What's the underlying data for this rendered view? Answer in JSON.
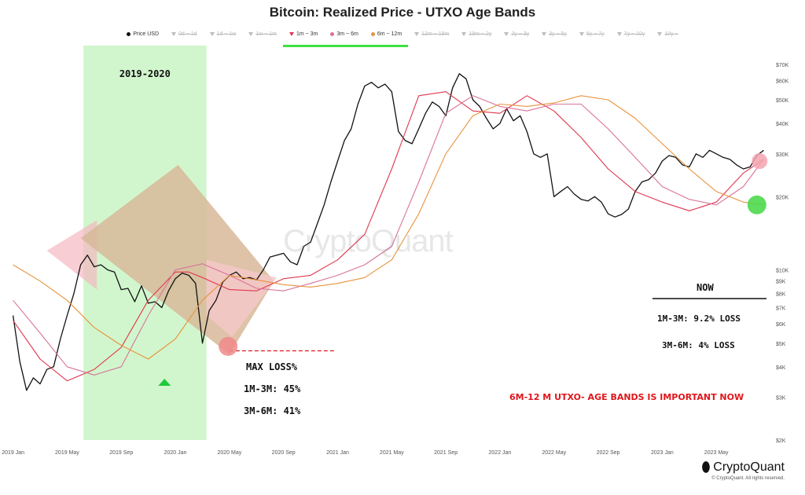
{
  "chart_data": {
    "type": "line",
    "title": "Bitcoin: Realized Price - UTXO Age Bands",
    "legend": [
      {
        "label": "Price USD",
        "color": "#111111",
        "active": true,
        "marker": "dot"
      },
      {
        "label": "0d ~ 1d",
        "color": "#bbbbbb",
        "active": false,
        "marker": "tri"
      },
      {
        "label": "1d ~ 1w",
        "color": "#bbbbbb",
        "active": false,
        "marker": "tri"
      },
      {
        "label": "1w ~ 1m",
        "color": "#bbbbbb",
        "active": false,
        "marker": "tri"
      },
      {
        "label": "1m ~ 3m",
        "color": "#e0364e",
        "active": true,
        "marker": "tri"
      },
      {
        "label": "3m ~ 6m",
        "color": "#d9729a",
        "active": true,
        "marker": "dot"
      },
      {
        "label": "6m ~ 12m",
        "color": "#e8933c",
        "active": true,
        "marker": "dot"
      },
      {
        "label": "12m ~ 18m",
        "color": "#bbbbbb",
        "active": false,
        "marker": "tri"
      },
      {
        "label": "18m ~ 2y",
        "color": "#bbbbbb",
        "active": false,
        "marker": "tri"
      },
      {
        "label": "2y ~ 3y",
        "color": "#bbbbbb",
        "active": false,
        "marker": "tri"
      },
      {
        "label": "3y ~ 5y",
        "color": "#bbbbbb",
        "active": false,
        "marker": "tri"
      },
      {
        "label": "5y ~ 7y",
        "color": "#bbbbbb",
        "active": false,
        "marker": "tri"
      },
      {
        "label": "7y ~ 10y",
        "color": "#bbbbbb",
        "active": false,
        "marker": "tri"
      },
      {
        "label": "10y ~",
        "color": "#bbbbbb",
        "active": false,
        "marker": "tri"
      }
    ],
    "x_ticks": [
      "2019 Jan",
      "2019 May",
      "2019 Sep",
      "2020 Jan",
      "2020 May",
      "2020 Sep",
      "2021 Jan",
      "2021 May",
      "2021 Sep",
      "2022 Jan",
      "2022 May",
      "2022 Sep",
      "2023 Jan",
      "2023 May"
    ],
    "y_ticks": [
      {
        "label": "$70K",
        "v": 70000
      },
      {
        "label": "$60K",
        "v": 60000
      },
      {
        "label": "$50K",
        "v": 50000
      },
      {
        "label": "$40K",
        "v": 40000
      },
      {
        "label": "$30K",
        "v": 30000
      },
      {
        "label": "$20K",
        "v": 20000
      },
      {
        "label": "$10K",
        "v": 10000
      },
      {
        "label": "$9K",
        "v": 9000
      },
      {
        "label": "$8K",
        "v": 8000
      },
      {
        "label": "$7K",
        "v": 7000
      },
      {
        "label": "$6K",
        "v": 6000
      },
      {
        "label": "$5K",
        "v": 5000
      },
      {
        "label": "$4K",
        "v": 4000
      },
      {
        "label": "$3K",
        "v": 3000
      },
      {
        "label": "$2K",
        "v": 2000
      }
    ],
    "y_scale": "log",
    "ylim": [
      2000,
      70000
    ],
    "series": [
      {
        "name": "Price USD",
        "color": "#111111",
        "t": [
          0,
          0.5,
          1,
          1.5,
          2,
          2.5,
          3,
          3.5,
          4,
          4.5,
          5,
          5.5,
          6,
          6.5,
          7,
          7.5,
          8,
          8.5,
          9,
          9.5,
          10,
          10.5,
          11,
          11.5,
          12,
          12.5,
          13,
          13.5,
          14,
          14.5,
          15,
          15.5,
          16,
          16.5,
          17,
          17.5,
          18,
          18.5,
          19,
          19.5,
          20,
          20.5,
          21,
          21.5,
          22,
          22.5,
          23,
          23.5,
          24,
          24.5,
          25,
          25.5,
          26,
          26.5,
          27,
          27.5,
          28,
          28.5,
          29,
          29.5,
          30,
          30.5,
          31,
          31.5,
          32,
          32.5,
          33,
          33.5,
          34,
          34.5,
          35,
          35.5,
          36,
          36.5,
          37,
          37.5,
          38,
          38.5,
          39,
          39.5,
          40,
          40.5,
          41,
          41.5,
          42,
          42.5,
          43,
          43.5,
          44,
          44.5,
          45,
          45.5,
          46,
          46.5,
          47,
          47.5,
          48,
          48.5,
          49,
          49.5,
          50,
          50.5,
          51,
          51.5,
          52,
          52.5,
          53,
          53.5,
          54,
          54.5,
          55,
          55.5
        ],
        "v": [
          6500,
          4200,
          3200,
          3600,
          3400,
          3900,
          4000,
          5200,
          6500,
          8000,
          10500,
          11500,
          10300,
          10500,
          10000,
          9800,
          8300,
          8400,
          7400,
          8600,
          7300,
          7400,
          7000,
          8200,
          9200,
          9700,
          9500,
          8800,
          5000,
          6800,
          7500,
          8900,
          9500,
          9800,
          9200,
          9300,
          9100,
          10000,
          11300,
          11500,
          11700,
          10800,
          10500,
          12500,
          13000,
          15500,
          18500,
          23000,
          28000,
          34000,
          38000,
          48000,
          57000,
          59000,
          56000,
          58000,
          54000,
          37000,
          34000,
          33000,
          38000,
          44000,
          49000,
          47000,
          43000,
          56000,
          64000,
          61000,
          50000,
          47000,
          42000,
          38000,
          40000,
          46000,
          41000,
          43000,
          37000,
          30000,
          29000,
          30000,
          20000,
          21000,
          22000,
          20500,
          19500,
          19200,
          20000,
          19000,
          17000,
          16500,
          16900,
          17800,
          21000,
          23000,
          23500,
          25000,
          28000,
          29500,
          29000,
          27000,
          26500,
          30000,
          29000,
          31000,
          30000,
          29000,
          28500,
          27000,
          26000,
          26500,
          29500,
          31000
        ]
      },
      {
        "name": "1m ~ 3m",
        "color": "#e0364e",
        "t": [
          0,
          2,
          4,
          6,
          8,
          10,
          12,
          13,
          14,
          16,
          18,
          20,
          22,
          24,
          26,
          28,
          30,
          32,
          34,
          36,
          38,
          40,
          42,
          44,
          46,
          48,
          50,
          52,
          54,
          55.5
        ],
        "v": [
          6200,
          4300,
          3500,
          3900,
          4800,
          7500,
          9800,
          9800,
          9300,
          8300,
          8200,
          9200,
          9500,
          11000,
          14000,
          26000,
          52000,
          54000,
          45000,
          44000,
          52000,
          45000,
          35000,
          26000,
          21000,
          19000,
          17500,
          19000,
          25000,
          28500
        ]
      },
      {
        "name": "3m ~ 6m",
        "color": "#d9729a",
        "t": [
          0,
          2,
          4,
          6,
          8,
          10,
          12,
          14,
          16,
          18,
          20,
          22,
          24,
          26,
          28,
          30,
          32,
          34,
          36,
          38,
          40,
          42,
          44,
          46,
          48,
          50,
          52,
          54,
          55.5
        ],
        "v": [
          7500,
          5500,
          4000,
          3700,
          4000,
          6500,
          10000,
          10600,
          9500,
          8400,
          8200,
          8800,
          9500,
          10500,
          12500,
          23000,
          44000,
          52000,
          47000,
          45000,
          48000,
          48000,
          38000,
          29000,
          22000,
          19500,
          18500,
          22000,
          28500
        ]
      },
      {
        "name": "6m ~ 12m",
        "color": "#e8933c",
        "t": [
          0,
          2,
          4,
          6,
          8,
          10,
          12,
          14,
          16,
          18,
          20,
          22,
          24,
          26,
          28,
          30,
          32,
          34,
          36,
          38,
          40,
          42,
          44,
          46,
          48,
          50,
          52,
          54,
          55.5
        ],
        "v": [
          10500,
          9000,
          7500,
          5800,
          4900,
          4300,
          5200,
          7500,
          9500,
          9100,
          8700,
          8500,
          8800,
          9300,
          11000,
          17000,
          30000,
          43000,
          48000,
          47000,
          48500,
          52000,
          50000,
          42000,
          33000,
          26000,
          21000,
          19000,
          18500
        ]
      }
    ],
    "highlight_label": "2019-2020",
    "annotations": {
      "max_loss_title": "MAX LOSS%",
      "max_loss_1m3m": "1M-3M: 45%",
      "max_loss_3m6m": "3M-6M: 41%",
      "now_title": "NOW",
      "now_1m3m": "1M-3M: 9.2% LOSS",
      "now_3m6m": "3M-6M: 4% LOSS",
      "important": "6M-12 M  UTXO- AGE BANDS IS IMPORTANT NOW"
    }
  },
  "watermark": "CryptoQuant",
  "brand": {
    "logo_text": "CryptoQuant",
    "copyright": "© CryptoQuant. All rights reserved."
  }
}
